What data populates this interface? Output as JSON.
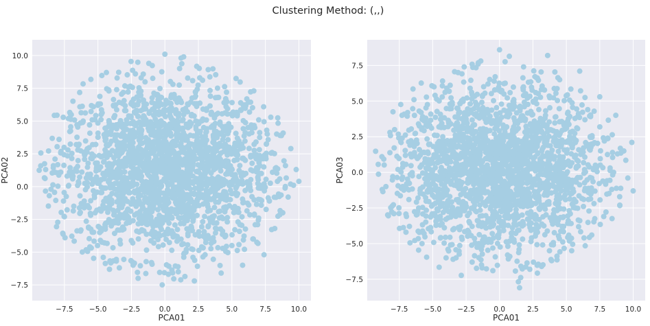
{
  "suptitle": "Clustering Method: (,,)",
  "colors": {
    "background": "#eaeaf2",
    "grid": "#ffffff",
    "point": "#a6cee3",
    "text": "#262626"
  },
  "chart_data": [
    {
      "type": "scatter",
      "title": "",
      "xlabel": "PCA01",
      "ylabel": "PCA02",
      "xlim": [
        -9.9,
        10.9
      ],
      "ylim": [
        -8.7,
        11.2
      ],
      "xticks": [
        -7.5,
        -5.0,
        -2.5,
        0.0,
        2.5,
        5.0,
        7.5,
        10.0
      ],
      "xtick_labels": [
        "−7.5",
        "−5.0",
        "−2.5",
        "0.0",
        "2.5",
        "5.0",
        "7.5",
        "10.0"
      ],
      "yticks": [
        -7.5,
        -5.0,
        -2.5,
        0.0,
        2.5,
        5.0,
        7.5,
        10.0
      ],
      "ytick_labels": [
        "−7.5",
        "−5.0",
        "−2.5",
        "0.0",
        "2.5",
        "5.0",
        "7.5",
        "10.0"
      ],
      "grid": true,
      "point_color": "#a6cee3",
      "points": [
        [
          -8.9,
          1.3
        ],
        [
          -8.5,
          -0.2
        ],
        [
          -8.2,
          2.1
        ],
        [
          -7.9,
          3.6
        ],
        [
          -7.5,
          -2.3
        ],
        [
          -7.3,
          0.8
        ],
        [
          -7.1,
          4.2
        ],
        [
          -6.8,
          -1.5
        ],
        [
          -6.5,
          2.8
        ],
        [
          -6.3,
          -3.4
        ],
        [
          -6.1,
          5.0
        ],
        [
          -5.8,
          0.3
        ],
        [
          -5.6,
          -4.6
        ],
        [
          -5.4,
          3.2
        ],
        [
          -5.2,
          -2.0
        ],
        [
          -5.0,
          6.2
        ],
        [
          -4.8,
          1.5
        ],
        [
          -4.6,
          -5.4
        ],
        [
          -4.4,
          -0.9
        ],
        [
          -4.2,
          4.6
        ],
        [
          -4.0,
          -3.0
        ],
        [
          -3.8,
          2.2
        ],
        [
          -3.6,
          7.4
        ],
        [
          -3.4,
          -6.2
        ],
        [
          -3.2,
          0.6
        ],
        [
          -3.0,
          5.8
        ],
        [
          -2.8,
          -1.8
        ],
        [
          -2.6,
          3.7
        ],
        [
          -2.4,
          -4.3
        ],
        [
          -2.2,
          8.6
        ],
        [
          -2.0,
          -7.0
        ],
        [
          -1.8,
          1.1
        ],
        [
          -1.6,
          6.6
        ],
        [
          -1.4,
          -2.7
        ],
        [
          -1.2,
          9.4
        ],
        [
          -1.0,
          -5.8
        ],
        [
          -0.8,
          2.9
        ],
        [
          -0.6,
          -0.4
        ],
        [
          -0.4,
          4.9
        ],
        [
          -0.2,
          -7.5
        ],
        [
          0.0,
          10.1
        ],
        [
          0.2,
          -3.6
        ],
        [
          0.4,
          1.8
        ],
        [
          0.6,
          7.8
        ],
        [
          0.8,
          -1.2
        ],
        [
          1.0,
          -6.5
        ],
        [
          1.2,
          3.3
        ],
        [
          1.4,
          9.9
        ],
        [
          1.6,
          -4.8
        ],
        [
          1.8,
          0.2
        ],
        [
          2.0,
          5.5
        ],
        [
          2.2,
          -7.2
        ],
        [
          2.4,
          -2.2
        ],
        [
          2.6,
          8.3
        ],
        [
          2.8,
          2.5
        ],
        [
          3.0,
          -5.2
        ],
        [
          3.2,
          -0.7
        ],
        [
          3.4,
          6.9
        ],
        [
          3.6,
          -3.9
        ],
        [
          3.8,
          1.4
        ],
        [
          4.0,
          4.1
        ],
        [
          4.2,
          -6.6
        ],
        [
          4.4,
          -1.6
        ],
        [
          4.6,
          7.2
        ],
        [
          4.8,
          3.0
        ],
        [
          5.0,
          -4.5
        ],
        [
          5.2,
          0.5
        ],
        [
          5.4,
          5.4
        ],
        [
          5.6,
          -2.9
        ],
        [
          5.8,
          -6.0
        ],
        [
          6.0,
          2.0
        ],
        [
          6.2,
          4.5
        ],
        [
          6.4,
          -0.3
        ],
        [
          6.6,
          -4.0
        ],
        [
          6.8,
          3.4
        ],
        [
          7.0,
          -2.4
        ],
        [
          7.2,
          1.0
        ],
        [
          7.4,
          -5.2
        ],
        [
          7.6,
          4.3
        ],
        [
          7.8,
          -1.1
        ],
        [
          8.0,
          2.6
        ],
        [
          8.2,
          -3.2
        ],
        [
          8.4,
          0.4
        ],
        [
          8.6,
          3.9
        ],
        [
          8.8,
          -2.0
        ],
        [
          9.0,
          1.6
        ],
        [
          9.2,
          -0.8
        ],
        [
          9.4,
          2.9
        ],
        [
          9.6,
          0.1
        ],
        [
          9.8,
          1.3
        ],
        [
          10.0,
          0.4
        ]
      ]
    },
    {
      "type": "scatter",
      "title": "",
      "xlabel": "PCA01",
      "ylabel": "PCA03",
      "xlim": [
        -9.9,
        10.9
      ],
      "ylim": [
        -9.0,
        9.3
      ],
      "xticks": [
        -7.5,
        -5.0,
        -2.5,
        0.0,
        2.5,
        5.0,
        7.5,
        10.0
      ],
      "xtick_labels": [
        "−7.5",
        "−5.0",
        "−2.5",
        "0.0",
        "2.5",
        "5.0",
        "7.5",
        "10.0"
      ],
      "yticks": [
        -7.5,
        -5.0,
        -2.5,
        0.0,
        2.5,
        5.0,
        7.5
      ],
      "ytick_labels": [
        "−7.5",
        "−5.0",
        "−2.5",
        "0.0",
        "2.5",
        "5.0",
        "7.5"
      ],
      "grid": true,
      "point_color": "#a6cee3",
      "points": [
        [
          -8.8,
          1.1
        ],
        [
          -8.5,
          -1.0
        ],
        [
          -8.2,
          2.8
        ],
        [
          -7.9,
          -2.9
        ],
        [
          -7.6,
          0.2
        ],
        [
          -7.3,
          4.0
        ],
        [
          -7.0,
          -4.2
        ],
        [
          -6.7,
          1.9
        ],
        [
          -6.4,
          5.1
        ],
        [
          -6.1,
          -1.8
        ],
        [
          -5.8,
          -5.0
        ],
        [
          -5.5,
          3.3
        ],
        [
          -5.2,
          0.6
        ],
        [
          -4.9,
          6.0
        ],
        [
          -4.6,
          -3.3
        ],
        [
          -4.3,
          2.2
        ],
        [
          -4.0,
          -6.0
        ],
        [
          -3.7,
          4.8
        ],
        [
          -3.4,
          -0.9
        ],
        [
          -3.1,
          7.0
        ],
        [
          -2.8,
          -4.7
        ],
        [
          -2.5,
          1.4
        ],
        [
          -2.2,
          5.9
        ],
        [
          -1.9,
          -2.4
        ],
        [
          -1.6,
          7.6
        ],
        [
          -1.3,
          -6.7
        ],
        [
          -1.0,
          3.0
        ],
        [
          -0.7,
          -0.3
        ],
        [
          -0.4,
          6.4
        ],
        [
          -0.1,
          -3.9
        ],
        [
          0.0,
          8.6
        ],
        [
          0.3,
          1.9
        ],
        [
          0.6,
          -5.8
        ],
        [
          0.9,
          4.7
        ],
        [
          1.2,
          -1.6
        ],
        [
          1.5,
          -8.1
        ],
        [
          1.8,
          7.4
        ],
        [
          2.1,
          0.8
        ],
        [
          2.4,
          -4.6
        ],
        [
          2.7,
          5.6
        ],
        [
          3.0,
          -2.6
        ],
        [
          3.3,
          2.7
        ],
        [
          3.6,
          8.2
        ],
        [
          3.9,
          -6.2
        ],
        [
          4.2,
          -0.5
        ],
        [
          4.5,
          6.5
        ],
        [
          4.8,
          -3.8
        ],
        [
          5.1,
          3.6
        ],
        [
          5.4,
          -5.5
        ],
        [
          5.7,
          1.2
        ],
        [
          6.0,
          7.1
        ],
        [
          6.3,
          -1.9
        ],
        [
          6.6,
          4.4
        ],
        [
          6.9,
          -4.4
        ],
        [
          7.2,
          0.3
        ],
        [
          7.5,
          5.3
        ],
        [
          7.8,
          -3.1
        ],
        [
          8.1,
          2.4
        ],
        [
          8.4,
          -1.2
        ],
        [
          8.7,
          4.0
        ],
        [
          9.0,
          -2.3
        ],
        [
          9.3,
          1.5
        ],
        [
          9.6,
          -0.4
        ],
        [
          9.9,
          2.1
        ],
        [
          10.0,
          -1.3
        ]
      ]
    }
  ]
}
